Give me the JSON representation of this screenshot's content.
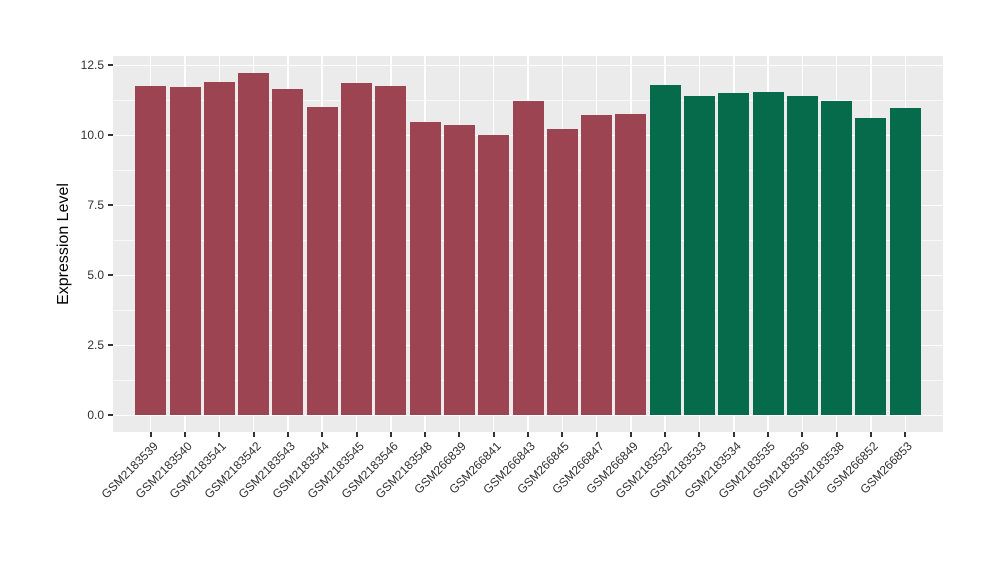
{
  "chart_data": {
    "type": "bar",
    "title": "",
    "xlabel": "",
    "ylabel": "Expression Level",
    "ylim": [
      0,
      12.5
    ],
    "yticks": [
      0,
      2.5,
      5,
      7.5,
      10,
      12.5
    ],
    "ytick_labels": [
      "0.0",
      "2.5",
      "5.0",
      "7.5",
      "10.0",
      "12.5"
    ],
    "yticks_minor": [
      1.25,
      3.75,
      6.25,
      8.75,
      11.25
    ],
    "grid": true,
    "legend_position": "none",
    "categories": [
      "GSM2183539",
      "GSM2183540",
      "GSM2183541",
      "GSM2183542",
      "GSM2183543",
      "GSM2183544",
      "GSM2183545",
      "GSM2183546",
      "GSM2183548",
      "GSM266839",
      "GSM266841",
      "GSM266843",
      "GSM266845",
      "GSM266847",
      "GSM266849",
      "GSM2183532",
      "GSM2183533",
      "GSM2183534",
      "GSM2183535",
      "GSM2183536",
      "GSM2183538",
      "GSM266852",
      "GSM266853"
    ],
    "values": [
      11.75,
      11.7,
      11.9,
      12.2,
      11.65,
      11.0,
      11.85,
      11.75,
      10.45,
      10.35,
      10.0,
      11.2,
      10.2,
      10.7,
      10.75,
      11.8,
      11.4,
      11.5,
      11.55,
      11.4,
      11.2,
      10.6,
      10.95
    ],
    "groups": [
      "A",
      "A",
      "A",
      "A",
      "A",
      "A",
      "A",
      "A",
      "A",
      "A",
      "A",
      "A",
      "A",
      "A",
      "A",
      "B",
      "B",
      "B",
      "B",
      "B",
      "B",
      "B",
      "B"
    ],
    "group_colors": {
      "A": "#9C4452",
      "B": "#056B4A"
    },
    "panel_bg_color": "#EBEBEB",
    "grid_color": "#FFFFFF",
    "tick_color": "#333333",
    "tick_label_color": "#303030"
  }
}
